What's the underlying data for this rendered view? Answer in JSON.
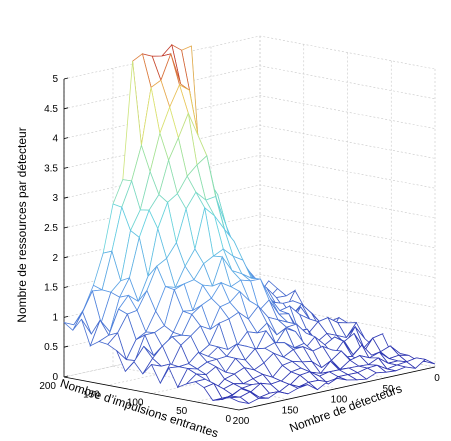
{
  "chart_data": {
    "type": "surface",
    "xlabel": "Nombre de détecteurs",
    "ylabel": "Nombre d’impulsions entrantes",
    "zlabel": "Nombre de ressources par détecteur",
    "xlim": [
      0,
      200
    ],
    "ylim": [
      0,
      200
    ],
    "zlim": [
      0,
      5
    ],
    "x_ticks": [
      "0",
      "50",
      "100",
      "150",
      "200"
    ],
    "y_ticks": [
      "0",
      "50",
      "100",
      "150",
      "200"
    ],
    "z_ticks": [
      "0",
      "0.5",
      "1",
      "1.5",
      "2",
      "2.5",
      "3",
      "3.5",
      "4",
      "4.5",
      "5"
    ],
    "grid": true,
    "colormap": "jet",
    "colors": {
      "low": "#2a2aa8",
      "mid_low": "#6fcde0",
      "mid": "#e8e86a",
      "high": "#c0392b"
    },
    "surface": {
      "x_values": [
        0,
        10,
        20,
        30,
        40,
        50,
        60,
        70,
        80,
        90,
        100,
        110,
        120,
        130,
        140,
        150,
        160,
        170,
        180,
        190,
        200
      ],
      "y_values": [
        0,
        10,
        20,
        30,
        40,
        50,
        60,
        70,
        80,
        90,
        100,
        110,
        120,
        130,
        140,
        150,
        160,
        170,
        180,
        190,
        200
      ],
      "shape": "ridge peaking near y=200, x≈75–125 at ~5.2, decaying to ~0.1 near y=0 and x=200"
    }
  }
}
